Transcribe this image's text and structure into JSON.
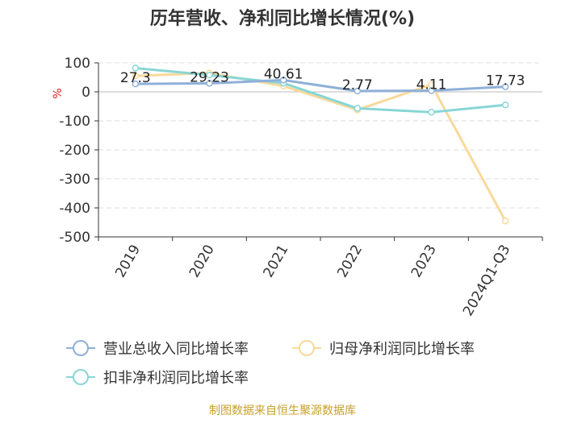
{
  "chart_data": {
    "type": "line",
    "title": "历年营收、净利同比增长情况(%)",
    "ylabel": "%",
    "categories": [
      "2019",
      "2020",
      "2021",
      "2022",
      "2023",
      "2024Q1-Q3"
    ],
    "yticks": [
      "100",
      "0",
      "-100",
      "-200",
      "-300",
      "-400",
      "-500"
    ],
    "ylim": [
      -500,
      100
    ],
    "grid": "horizontal-dashed",
    "legend_position": "bottom",
    "series": [
      {
        "name": "营业总收入同比增长率",
        "color": "#8eb0d9",
        "values": [
          27.3,
          29.23,
          40.61,
          2.77,
          4.11,
          17.73
        ],
        "labels": [
          "27.3",
          "29.23",
          "40.61",
          "2.77",
          "4.11",
          "17.73"
        ]
      },
      {
        "name": "归母净利润同比增长率",
        "color": "#f9d99a",
        "values": [
          55,
          65,
          20,
          -62,
          25,
          -445
        ]
      },
      {
        "name": "扣非净利润同比增长率",
        "color": "#88d6d6",
        "values": [
          82,
          58,
          30,
          -57,
          -70,
          -45
        ]
      }
    ],
    "source": "制图数据来自恒生聚源数据库"
  }
}
